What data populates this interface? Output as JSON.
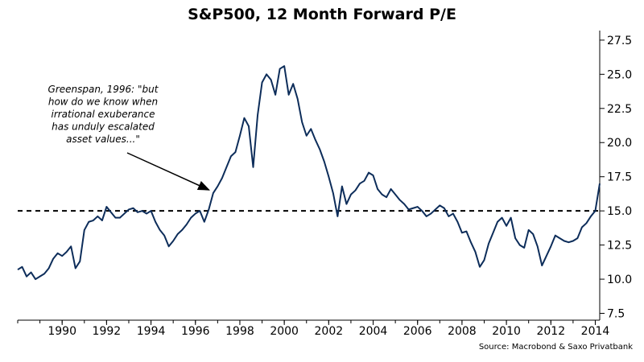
{
  "chart_data": {
    "type": "line",
    "title": "S&P500, 12 Month Forward P/E",
    "source": "Source: Macrobond & Saxo Privatbank",
    "x_ticks": [
      "1990",
      "1992",
      "1994",
      "1996",
      "1998",
      "2000",
      "2002",
      "2004",
      "2006",
      "2008",
      "2010",
      "2012",
      "2014"
    ],
    "y_ticks": [
      "7.5",
      "10.0",
      "12.5",
      "15.0",
      "17.5",
      "20.0",
      "22.5",
      "25.0",
      "27.5"
    ],
    "xlim": [
      1988.0,
      2014.2
    ],
    "ylim": [
      7.0,
      28.2
    ],
    "reference_line": 15.0,
    "annotation": [
      "Greenspan, 1996: \"but",
      "how do we know when",
      "irrational exuberance",
      "has unduly escalated",
      "asset values...\""
    ],
    "annotation_arrow_target": {
      "x": 1996.9,
      "y": 16.3
    },
    "line_color": "#0d2d5a",
    "series": [
      {
        "x": [
          1988.0,
          1988.2,
          1988.4,
          1988.6,
          1988.8,
          1989.0,
          1989.2,
          1989.4,
          1989.6,
          1989.8,
          1990.0,
          1990.2,
          1990.4,
          1990.6,
          1990.8,
          1991.0,
          1991.2,
          1991.4,
          1991.6,
          1991.8,
          1992.0,
          1992.2,
          1992.4,
          1992.6,
          1992.8,
          1993.0,
          1993.2,
          1993.4,
          1993.6,
          1993.8,
          1994.0,
          1994.2,
          1994.4,
          1994.6,
          1994.8,
          1995.0,
          1995.2,
          1995.4,
          1995.6,
          1995.8,
          1996.0,
          1996.2,
          1996.4,
          1996.6,
          1996.8,
          1997.0,
          1997.2,
          1997.4,
          1997.6,
          1997.8,
          1998.0,
          1998.2,
          1998.4,
          1998.6,
          1998.8,
          1999.0,
          1999.2,
          1999.4,
          1999.6,
          1999.8,
          2000.0,
          2000.2,
          2000.4,
          2000.6,
          2000.8,
          2001.0,
          2001.2,
          2001.4,
          2001.6,
          2001.8,
          2002.0,
          2002.2,
          2002.4,
          2002.6,
          2002.8,
          2003.0,
          2003.2,
          2003.4,
          2003.6,
          2003.8,
          2004.0,
          2004.2,
          2004.4,
          2004.6,
          2004.8,
          2005.0,
          2005.2,
          2005.4,
          2005.6,
          2005.8,
          2006.0,
          2006.2,
          2006.4,
          2006.6,
          2006.8,
          2007.0,
          2007.2,
          2007.4,
          2007.6,
          2007.8,
          2008.0,
          2008.2,
          2008.4,
          2008.6,
          2008.8,
          2009.0,
          2009.2,
          2009.4,
          2009.6,
          2009.8,
          2010.0,
          2010.2,
          2010.4,
          2010.6,
          2010.8,
          2011.0,
          2011.2,
          2011.4,
          2011.6,
          2011.8,
          2012.0,
          2012.2,
          2012.4,
          2012.6,
          2012.8,
          2013.0,
          2013.2,
          2013.4,
          2013.6,
          2013.8,
          2014.0,
          2014.2
        ],
        "values": [
          10.7,
          10.9,
          10.2,
          10.5,
          10.0,
          10.2,
          10.4,
          10.8,
          11.5,
          11.9,
          11.7,
          12.0,
          12.4,
          10.8,
          11.3,
          13.6,
          14.2,
          14.3,
          14.6,
          14.3,
          15.3,
          14.9,
          14.5,
          14.5,
          14.8,
          15.1,
          15.2,
          14.9,
          15.0,
          14.8,
          15.0,
          14.2,
          13.6,
          13.2,
          12.4,
          12.8,
          13.3,
          13.6,
          14.0,
          14.5,
          14.8,
          15.0,
          14.2,
          15.1,
          16.3,
          16.8,
          17.4,
          18.2,
          19.0,
          19.3,
          20.5,
          21.8,
          21.2,
          18.2,
          22.0,
          24.4,
          25.0,
          24.6,
          23.5,
          25.4,
          25.6,
          23.5,
          24.3,
          23.2,
          21.5,
          20.5,
          21.0,
          20.2,
          19.5,
          18.6,
          17.5,
          16.3,
          14.6,
          16.8,
          15.5,
          16.2,
          16.5,
          17.0,
          17.2,
          17.8,
          17.6,
          16.6,
          16.2,
          16.0,
          16.6,
          16.2,
          15.8,
          15.5,
          15.1,
          15.2,
          15.3,
          15.0,
          14.6,
          14.8,
          15.1,
          15.4,
          15.2,
          14.6,
          14.8,
          14.2,
          13.4,
          13.5,
          12.7,
          12.0,
          10.9,
          11.4,
          12.6,
          13.4,
          14.2,
          14.5,
          13.9,
          14.5,
          13.0,
          12.5,
          12.3,
          13.6,
          13.3,
          12.4,
          11.0,
          11.7,
          12.4,
          13.2,
          13.0,
          12.8,
          12.7,
          12.8,
          13.0,
          13.8,
          14.1,
          14.6,
          15.0,
          17.0
        ]
      }
    ]
  }
}
